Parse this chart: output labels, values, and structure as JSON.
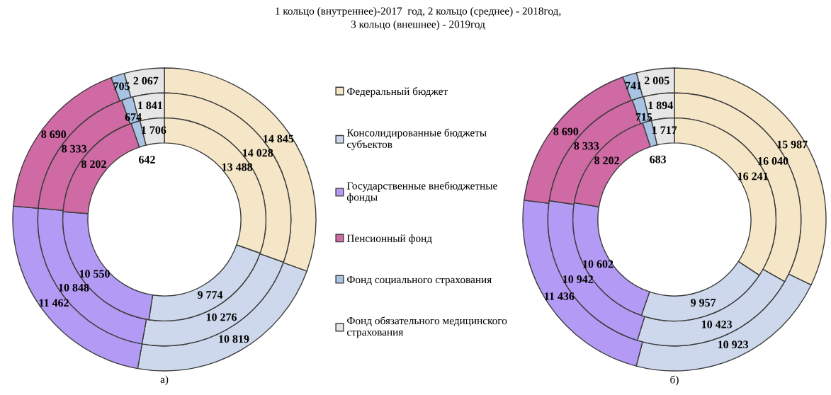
{
  "chart_data": [
    {
      "type": "donut",
      "title": "1 кольцо (внутреннее)-2017  год, 2 кольцо (среднее) - 2018год,\n3 кольцо (внешнее) - 2019год",
      "categories": [
        "Федеральный бюджет",
        "Консолидированные бюджеты субъектов",
        "Государственные внебюджетные фонды",
        "Пенсионный фонд",
        "Фонд социального страхования",
        "Фонд обязательного медицинского страхования"
      ],
      "colors": [
        "#f4e6c6",
        "#cdd8ec",
        "#b39af5",
        "#cf6aa4",
        "#a9c3e3",
        "#e6e6e6"
      ],
      "series": [
        {
          "values": [
            14845,
            10819,
            11462,
            8690,
            705,
            2067
          ],
          "value_labels": [
            "14 845",
            "10 819",
            "11 462",
            "8 690",
            "705",
            "2 067"
          ]
        },
        {
          "values": [
            14028,
            10276,
            10848,
            8333,
            674,
            1841
          ],
          "value_labels": [
            "14 028",
            "10 276",
            "10 848",
            "8 333",
            "674",
            "1 841"
          ]
        },
        {
          "values": [
            13488,
            9774,
            10550,
            8202,
            642,
            1706
          ],
          "value_labels": [
            "13 488",
            "9 774",
            "10 550",
            "8 202",
            "642",
            "1 706"
          ]
        }
      ],
      "legend": "right",
      "annotations": [
        "а)"
      ]
    },
    {
      "type": "donut",
      "categories": [
        null,
        null,
        null,
        null,
        null,
        null
      ],
      "colors": [
        "#f4e6c6",
        "#cdd8ec",
        "#b39af5",
        "#cf6aa4",
        "#a9c3e3",
        "#e6e6e6"
      ],
      "series": [
        {
          "values": [
            15987,
            10923,
            11436,
            8690,
            741,
            2005
          ],
          "value_labels": [
            "15 987",
            "10 923",
            "11 436",
            "8 690",
            "741",
            "2 005"
          ]
        },
        {
          "values": [
            16040,
            10423,
            10942,
            8333,
            715,
            1894
          ],
          "value_labels": [
            "16 040",
            "10 423",
            "10 942",
            "8 333",
            "715",
            "1 894"
          ]
        },
        {
          "values": [
            16241,
            9957,
            10602,
            8202,
            683,
            1717
          ],
          "value_labels": [
            "16 241",
            "9 957",
            "10 602",
            "8 202",
            "683",
            "1 717"
          ]
        }
      ],
      "annotations": [
        "б)"
      ]
    }
  ]
}
